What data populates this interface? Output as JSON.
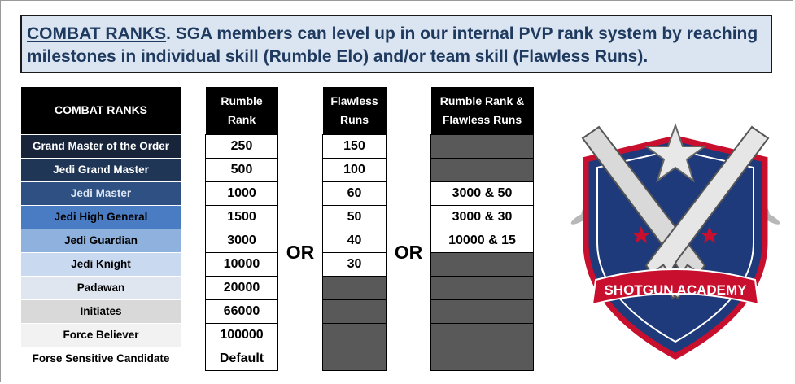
{
  "header": {
    "title_keyword": "COMBAT RANKS",
    "title_rest": ".  SGA members can level up in our internal PVP rank system by reaching milestones in individual skill (Rumble Elo) and/or team skill (Flawless Runs)."
  },
  "table": {
    "headers": {
      "rank": "COMBAT RANKS",
      "rumble_line1": "Rumble",
      "rumble_line2": "Rank",
      "flawless_line1": "Flawless",
      "flawless_line2": "Runs",
      "combo_line1": "Rumble Rank &",
      "combo_line2": "Flawless Runs"
    },
    "or_label_1": "OR",
    "or_label_2": "OR",
    "rows": [
      {
        "rank": "Grand Master of the Order",
        "rumble": "250",
        "flawless": "150",
        "combo": "",
        "color": "#17243a",
        "text_color": "#ffffff"
      },
      {
        "rank": "Jedi Grand Master",
        "rumble": "500",
        "flawless": "100",
        "combo": "",
        "color": "#1f3656",
        "text_color": "#ffffff"
      },
      {
        "rank": "Jedi Master",
        "rumble": "1000",
        "flawless": "60",
        "combo": "3000 & 50",
        "color": "#2e5083",
        "text_color": "#dbe5f1"
      },
      {
        "rank": "Jedi High General",
        "rumble": "1500",
        "flawless": "50",
        "combo": "3000 & 30",
        "color": "#4a7cc4",
        "text_color": "#000000"
      },
      {
        "rank": "Jedi Guardian",
        "rumble": "3000",
        "flawless": "40",
        "combo": "10000 & 15",
        "color": "#8eb1dd",
        "text_color": "#000000"
      },
      {
        "rank": "Jedi Knight",
        "rumble": "10000",
        "flawless": "30",
        "combo": "",
        "color": "#c9d9ef",
        "text_color": "#000000"
      },
      {
        "rank": "Padawan",
        "rumble": "20000",
        "flawless": "",
        "combo": "",
        "color": "#dfe6f0",
        "text_color": "#000000"
      },
      {
        "rank": "Initiates",
        "rumble": "66000",
        "flawless": "",
        "combo": "",
        "color": "#d9d9d9",
        "text_color": "#000000"
      },
      {
        "rank": "Force Believer",
        "rumble": "100000",
        "flawless": "",
        "combo": "",
        "color": "#f2f2f2",
        "text_color": "#000000"
      },
      {
        "rank": "Forse Sensitive Candidate",
        "rumble": "Default",
        "flawless": "",
        "combo": "",
        "color": "#ffffff",
        "text_color": "#000000"
      }
    ]
  },
  "logo": {
    "text": "SHOTGUN ACADEMY",
    "colors": {
      "shield": "#1f3a7a",
      "band": "#c8102e",
      "silver": "#d9d9d9"
    }
  }
}
